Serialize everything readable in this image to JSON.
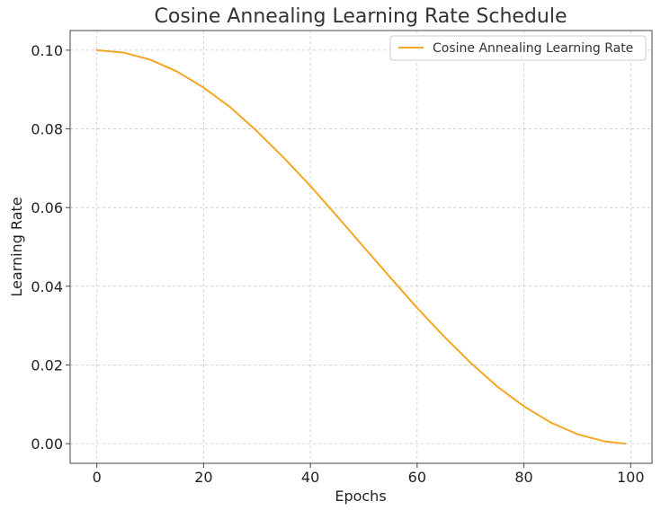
{
  "chart_data": {
    "type": "line",
    "title": "Cosine Annealing Learning Rate Schedule",
    "xlabel": "Epochs",
    "ylabel": "Learning Rate",
    "xlim": [
      -5,
      104
    ],
    "ylim": [
      -0.005,
      0.105
    ],
    "xticks": [
      0,
      20,
      40,
      60,
      80,
      100
    ],
    "yticks": [
      0.0,
      0.02,
      0.04,
      0.06,
      0.08,
      0.1
    ],
    "xtick_labels": [
      "0",
      "20",
      "40",
      "60",
      "80",
      "100"
    ],
    "ytick_labels": [
      "0.00",
      "0.02",
      "0.04",
      "0.06",
      "0.08",
      "0.10"
    ],
    "grid": true,
    "legend_position": "top-right",
    "series": [
      {
        "name": "Cosine Annealing Learning Rate",
        "color": "#f5a623",
        "x": [
          0,
          5,
          10,
          15,
          20,
          25,
          30,
          35,
          40,
          45,
          50,
          55,
          60,
          65,
          70,
          75,
          80,
          85,
          90,
          95,
          99
        ],
        "y": [
          0.1,
          0.0994,
          0.0976,
          0.0946,
          0.0905,
          0.0855,
          0.0794,
          0.0727,
          0.0655,
          0.0578,
          0.05,
          0.0422,
          0.0345,
          0.0273,
          0.0206,
          0.0145,
          0.0095,
          0.0054,
          0.0024,
          0.0006,
          0.0
        ]
      }
    ]
  }
}
